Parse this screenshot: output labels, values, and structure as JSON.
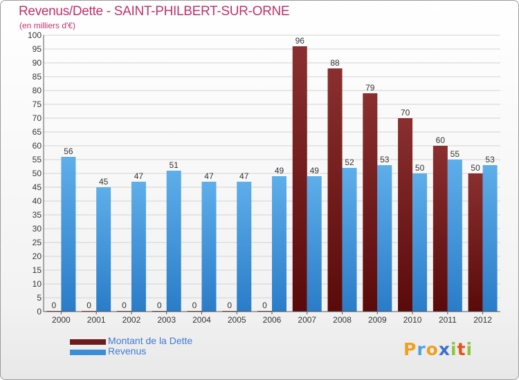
{
  "title": "Revenus/Dette - SAINT-PHILBERT-SUR-ORNE",
  "subtitle": "(en milliers d'€)",
  "colors": {
    "dette": "#6e1a1a",
    "revenus": "#3a8ed8",
    "title": "#c0306a",
    "legend": "#3b7ad9"
  },
  "brand": [
    "P",
    "r",
    "o",
    "x",
    "i",
    "t",
    "i"
  ],
  "chart_data": {
    "type": "bar",
    "title": "Revenus/Dette - SAINT-PHILBERT-SUR-ORNE",
    "ylabel": "(en milliers d'€)",
    "xlabel": "",
    "ylim": [
      0,
      100
    ],
    "yticks": [
      0,
      5,
      10,
      15,
      20,
      25,
      30,
      35,
      40,
      45,
      50,
      55,
      60,
      65,
      70,
      75,
      80,
      85,
      90,
      95,
      100
    ],
    "grid": true,
    "categories": [
      "2000",
      "2001",
      "2002",
      "2003",
      "2004",
      "2005",
      "2006",
      "2007",
      "2008",
      "2009",
      "2010",
      "2011",
      "2012"
    ],
    "series": [
      {
        "name": "Montant de la Dette",
        "values": [
          0,
          0,
          0,
          0,
          0,
          0,
          0,
          96,
          88,
          79,
          70,
          60,
          50
        ]
      },
      {
        "name": "Revenus",
        "values": [
          56,
          45,
          47,
          51,
          47,
          47,
          49,
          49,
          52,
          53,
          50,
          55,
          53
        ]
      }
    ],
    "legend": "bottom-left"
  }
}
